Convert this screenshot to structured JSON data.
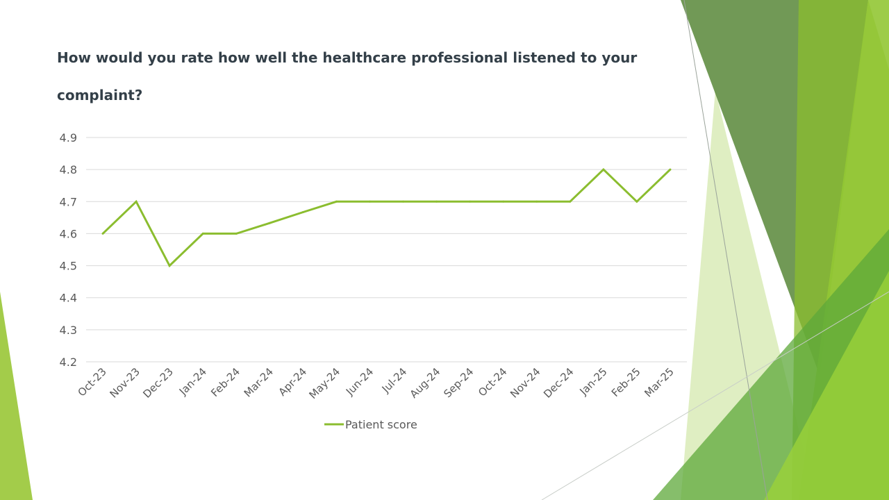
{
  "slide": {
    "title": "How would you rate how well the healthcare professional listened to your complaint?",
    "accent_colors": [
      "#6a9a4a",
      "#8bbd2f",
      "#a3cc4a",
      "#c9e39a"
    ]
  },
  "chart_data": {
    "type": "line",
    "title": "How would you rate how well the healthcare professional listened to your complaint?",
    "categories": [
      "Oct-23",
      "Nov-23",
      "Dec-23",
      "Jan-24",
      "Feb-24",
      "Mar-24",
      "Apr-24",
      "May-24",
      "Jun-24",
      "Jul-24",
      "Aug-24",
      "Sep-24",
      "Oct-24",
      "Nov-24",
      "Dec-24",
      "Jan-25",
      "Feb-25",
      "Mar-25"
    ],
    "series": [
      {
        "name": "Patient score",
        "color": "#8bbd2f",
        "values": [
          4.6,
          4.7,
          4.5,
          4.6,
          4.6,
          4.633,
          4.667,
          4.7,
          4.7,
          4.7,
          4.7,
          4.7,
          4.7,
          4.7,
          4.7,
          4.8,
          4.7,
          4.8
        ]
      }
    ],
    "y_ticks": [
      "4.2",
      "4.3",
      "4.4",
      "4.5",
      "4.6",
      "4.7",
      "4.8",
      "4.9"
    ],
    "ylim": [
      4.2,
      4.9
    ],
    "xlabel": "",
    "ylabel": "",
    "grid": true,
    "legend_position": "bottom"
  }
}
